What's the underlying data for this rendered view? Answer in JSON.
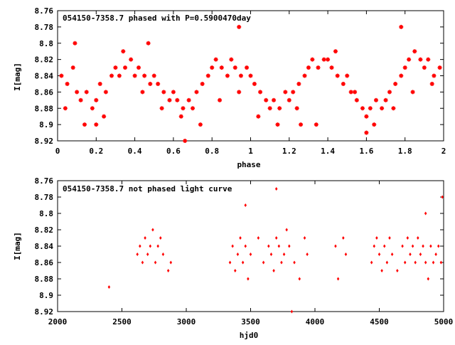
{
  "chart_data": [
    {
      "type": "scatter",
      "title": "054150-7358.7 phased with P=0.5900470day",
      "xlabel": "phase",
      "ylabel": "I[mag]",
      "xlim": [
        0,
        2
      ],
      "ylim": [
        8.76,
        8.92
      ],
      "y_inverted": true,
      "x_ticks": [
        "0",
        "0.2",
        "0.4",
        "0.6",
        "0.8",
        "1",
        "1.2",
        "1.4",
        "1.6",
        "1.8",
        "2"
      ],
      "y_ticks": [
        "8.76",
        "8.78",
        "8.8",
        "8.82",
        "8.84",
        "8.86",
        "8.88",
        "8.9",
        "8.92"
      ],
      "marker": "star",
      "color": "#ff0000",
      "grid": false,
      "x": [
        0.02,
        0.05,
        0.08,
        0.1,
        0.12,
        0.15,
        0.18,
        0.2,
        0.22,
        0.25,
        0.28,
        0.3,
        0.32,
        0.35,
        0.38,
        0.4,
        0.42,
        0.45,
        0.48,
        0.5,
        0.52,
        0.55,
        0.58,
        0.6,
        0.62,
        0.65,
        0.68,
        0.7,
        0.72,
        0.75,
        0.78,
        0.8,
        0.82,
        0.85,
        0.88,
        0.9,
        0.92,
        0.95,
        0.98,
        1.0,
        1.02,
        1.05,
        1.08,
        1.1,
        1.12,
        1.15,
        1.18,
        1.2,
        1.22,
        1.25,
        1.28,
        1.3,
        1.32,
        1.35,
        1.38,
        1.4,
        1.42,
        1.45,
        1.48,
        1.5,
        1.52,
        1.55,
        1.58,
        1.6,
        1.62,
        1.65,
        1.68,
        1.7,
        1.72,
        1.75,
        1.78,
        1.8,
        1.82,
        1.85,
        1.88,
        1.9,
        1.92,
        1.95,
        1.98,
        0.04,
        0.14,
        0.24,
        0.34,
        0.44,
        0.54,
        0.64,
        0.74,
        0.84,
        0.94,
        1.04,
        1.14,
        1.24,
        1.34,
        1.44,
        1.54,
        1.64,
        1.74,
        1.84,
        1.94,
        0.09,
        0.47,
        0.66,
        0.94,
        1.78,
        1.26,
        1.6,
        0.2
      ],
      "y": [
        8.84,
        8.85,
        8.83,
        8.86,
        8.87,
        8.86,
        8.88,
        8.87,
        8.85,
        8.86,
        8.84,
        8.83,
        8.84,
        8.83,
        8.82,
        8.84,
        8.83,
        8.84,
        8.85,
        8.84,
        8.85,
        8.86,
        8.87,
        8.86,
        8.87,
        8.88,
        8.87,
        8.88,
        8.86,
        8.85,
        8.84,
        8.83,
        8.82,
        8.83,
        8.84,
        8.82,
        8.83,
        8.84,
        8.83,
        8.84,
        8.85,
        8.86,
        8.87,
        8.88,
        8.87,
        8.88,
        8.86,
        8.87,
        8.86,
        8.85,
        8.84,
        8.83,
        8.82,
        8.83,
        8.82,
        8.82,
        8.83,
        8.84,
        8.85,
        8.84,
        8.86,
        8.87,
        8.88,
        8.89,
        8.88,
        8.87,
        8.88,
        8.87,
        8.86,
        8.85,
        8.84,
        8.83,
        8.82,
        8.81,
        8.82,
        8.83,
        8.82,
        8.84,
        8.83,
        8.88,
        8.9,
        8.89,
        8.81,
        8.86,
        8.88,
        8.89,
        8.9,
        8.87,
        8.86,
        8.89,
        8.9,
        8.88,
        8.9,
        8.81,
        8.86,
        8.9,
        8.88,
        8.86,
        8.85,
        8.8,
        8.8,
        8.92,
        8.78,
        8.78,
        8.9,
        8.91,
        8.9
      ]
    },
    {
      "type": "scatter",
      "title": "054150-7358.7 not phased light curve",
      "xlabel": "hjd0",
      "ylabel": "I[mag]",
      "xlim": [
        2000,
        5000
      ],
      "ylim": [
        8.76,
        8.92
      ],
      "y_inverted": true,
      "x_ticks": [
        "2000",
        "2500",
        "3000",
        "3500",
        "4000",
        "4500",
        "5000"
      ],
      "y_ticks": [
        "8.76",
        "8.78",
        "8.8",
        "8.82",
        "8.84",
        "8.86",
        "8.88",
        "8.9",
        "8.92"
      ],
      "marker": "diamond",
      "color": "#ff0000",
      "grid": false,
      "x": [
        2400,
        2620,
        2640,
        2660,
        2680,
        2700,
        2720,
        2740,
        2760,
        2780,
        2800,
        2820,
        2860,
        2880,
        3340,
        3360,
        3380,
        3400,
        3420,
        3440,
        3460,
        3480,
        3500,
        3560,
        3600,
        3640,
        3660,
        3680,
        3700,
        3720,
        3740,
        3760,
        3780,
        3800,
        3840,
        3880,
        3920,
        3940,
        4160,
        4180,
        4220,
        4240,
        4440,
        4460,
        4480,
        4500,
        4520,
        4540,
        4560,
        4580,
        4600,
        4640,
        4680,
        4700,
        4720,
        4740,
        4760,
        4780,
        4800,
        4820,
        4840,
        4860,
        4880,
        4900,
        4920,
        4940,
        4960,
        4980,
        3700,
        3820,
        3460,
        4860,
        4990
      ],
      "y": [
        8.89,
        8.85,
        8.84,
        8.86,
        8.83,
        8.85,
        8.84,
        8.82,
        8.86,
        8.84,
        8.83,
        8.85,
        8.87,
        8.86,
        8.86,
        8.84,
        8.87,
        8.85,
        8.83,
        8.86,
        8.84,
        8.88,
        8.85,
        8.83,
        8.86,
        8.84,
        8.85,
        8.87,
        8.83,
        8.84,
        8.86,
        8.85,
        8.82,
        8.84,
        8.86,
        8.88,
        8.83,
        8.85,
        8.84,
        8.88,
        8.83,
        8.85,
        8.86,
        8.84,
        8.83,
        8.85,
        8.87,
        8.84,
        8.86,
        8.83,
        8.85,
        8.87,
        8.84,
        8.86,
        8.83,
        8.85,
        8.84,
        8.86,
        8.83,
        8.85,
        8.84,
        8.86,
        8.88,
        8.84,
        8.86,
        8.85,
        8.84,
        8.86,
        8.77,
        8.92,
        8.79,
        8.8,
        8.78
      ]
    }
  ]
}
